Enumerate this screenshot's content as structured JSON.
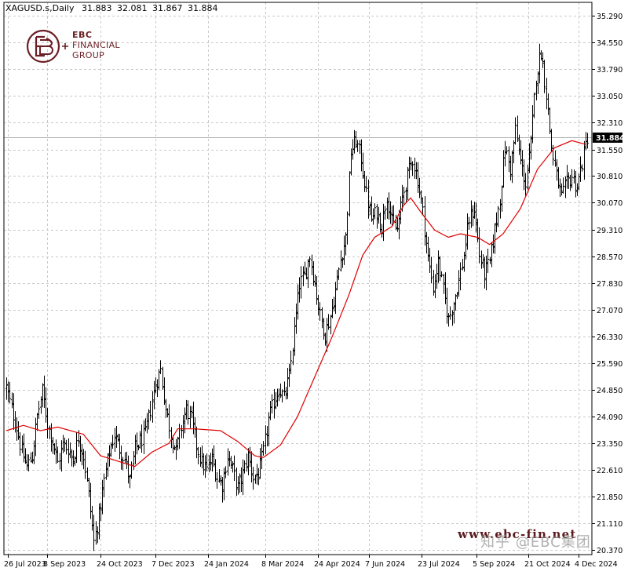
{
  "header": {
    "symbol": "XAGUSD.s,Daily",
    "open": "31.883",
    "high": "32.081",
    "low": "31.867",
    "close": "31.884"
  },
  "logo": {
    "line1": "EBC",
    "line2": "FINANCIAL",
    "line3": "GROUP"
  },
  "watermark": {
    "url": "www.ebc-fin.net",
    "zh": "知乎 @EBC集团"
  },
  "colors": {
    "price_bars": "#000000",
    "moving_average": "#e00000",
    "grid": "#c8c8c8",
    "logo": "#6b1f24",
    "current_price_label_bg": "#000000",
    "current_price_label_text": "#ffffff"
  },
  "chart_data": {
    "type": "ohlc",
    "grid": true,
    "y_ticks": [
      "35.290",
      "34.550",
      "33.790",
      "33.050",
      "32.310",
      "31.550",
      "30.810",
      "30.070",
      "29.310",
      "28.570",
      "27.830",
      "27.070",
      "26.330",
      "25.590",
      "24.850",
      "24.090",
      "23.350",
      "22.610",
      "21.850",
      "21.110",
      "20.370"
    ],
    "ylim": [
      20.37,
      35.29
    ],
    "x_ticks": [
      "26 Jul 2023",
      "8 Sep 2023",
      "24 Oct 2023",
      "7 Dec 2023",
      "24 Jan 2024",
      "8 Mar 2024",
      "24 Apr 2024",
      "7 Jun 2024",
      "23 Jul 2024",
      "5 Sep 2024",
      "21 Oct 2024",
      "4 Dec 2024"
    ],
    "current_price": 31.884,
    "close_anchors": [
      [
        0,
        24.9
      ],
      [
        3,
        24.3
      ],
      [
        6,
        23.8
      ],
      [
        9,
        23.1
      ],
      [
        12,
        22.7
      ],
      [
        15,
        23.0
      ],
      [
        18,
        24.1
      ],
      [
        21,
        24.8
      ],
      [
        24,
        23.9
      ],
      [
        27,
        23.4
      ],
      [
        30,
        22.8
      ],
      [
        33,
        23.3
      ],
      [
        36,
        23.2
      ],
      [
        39,
        22.9
      ],
      [
        42,
        23.5
      ],
      [
        45,
        23.0
      ],
      [
        48,
        21.9
      ],
      [
        51,
        20.6
      ],
      [
        54,
        21.3
      ],
      [
        57,
        22.3
      ],
      [
        60,
        23.1
      ],
      [
        63,
        23.6
      ],
      [
        66,
        23.2
      ],
      [
        69,
        22.9
      ],
      [
        72,
        22.3
      ],
      [
        75,
        23.2
      ],
      [
        78,
        23.4
      ],
      [
        81,
        23.6
      ],
      [
        84,
        24.3
      ],
      [
        87,
        25.0
      ],
      [
        90,
        25.4
      ],
      [
        93,
        24.3
      ],
      [
        96,
        23.6
      ],
      [
        99,
        23.1
      ],
      [
        102,
        23.8
      ],
      [
        105,
        24.3
      ],
      [
        108,
        24.0
      ],
      [
        111,
        23.3
      ],
      [
        114,
        22.8
      ],
      [
        117,
        22.6
      ],
      [
        120,
        22.9
      ],
      [
        123,
        22.4
      ],
      [
        126,
        22.2
      ],
      [
        129,
        23.0
      ],
      [
        132,
        22.6
      ],
      [
        135,
        22.1
      ],
      [
        138,
        22.5
      ],
      [
        141,
        23.0
      ],
      [
        144,
        22.4
      ],
      [
        147,
        22.5
      ],
      [
        150,
        23.1
      ],
      [
        153,
        24.0
      ],
      [
        156,
        24.5
      ],
      [
        159,
        24.9
      ],
      [
        162,
        24.6
      ],
      [
        165,
        25.2
      ],
      [
        168,
        26.5
      ],
      [
        171,
        27.8
      ],
      [
        174,
        28.0
      ],
      [
        177,
        28.6
      ],
      [
        180,
        27.8
      ],
      [
        183,
        26.9
      ],
      [
        186,
        26.4
      ],
      [
        189,
        26.9
      ],
      [
        192,
        27.6
      ],
      [
        195,
        28.5
      ],
      [
        198,
        29.1
      ],
      [
        201,
        31.5
      ],
      [
        204,
        31.8
      ],
      [
        207,
        31.3
      ],
      [
        210,
        30.3
      ],
      [
        213,
        29.6
      ],
      [
        216,
        29.8
      ],
      [
        219,
        29.4
      ],
      [
        222,
        30.3
      ],
      [
        225,
        29.5
      ],
      [
        228,
        29.3
      ],
      [
        231,
        30.2
      ],
      [
        234,
        30.8
      ],
      [
        237,
        31.3
      ],
      [
        240,
        30.7
      ],
      [
        243,
        29.8
      ],
      [
        246,
        28.5
      ],
      [
        249,
        27.7
      ],
      [
        252,
        28.4
      ],
      [
        255,
        27.6
      ],
      [
        258,
        26.8
      ],
      [
        261,
        27.3
      ],
      [
        264,
        27.9
      ],
      [
        267,
        28.6
      ],
      [
        270,
        29.6
      ],
      [
        273,
        29.9
      ],
      [
        276,
        28.6
      ],
      [
        279,
        28.1
      ],
      [
        282,
        28.4
      ],
      [
        285,
        29.3
      ],
      [
        288,
        30.2
      ],
      [
        291,
        31.6
      ],
      [
        294,
        31.0
      ],
      [
        297,
        32.1
      ],
      [
        300,
        31.2
      ],
      [
        303,
        30.6
      ],
      [
        306,
        31.7
      ],
      [
        309,
        33.6
      ],
      [
        312,
        34.3
      ],
      [
        315,
        33.1
      ],
      [
        318,
        31.6
      ],
      [
        321,
        30.8
      ],
      [
        324,
        30.2
      ],
      [
        327,
        30.6
      ],
      [
        330,
        30.8
      ],
      [
        333,
        30.5
      ],
      [
        336,
        31.2
      ],
      [
        339,
        31.9
      ]
    ],
    "series": [
      {
        "name": "",
        "type": "ohlc_bars"
      },
      {
        "name": "",
        "type": "moving_average",
        "values": [
          [
            0,
            23.7
          ],
          [
            10,
            23.85
          ],
          [
            20,
            23.7
          ],
          [
            30,
            23.8
          ],
          [
            45,
            23.6
          ],
          [
            55,
            23.0
          ],
          [
            65,
            22.85
          ],
          [
            75,
            22.7
          ],
          [
            85,
            23.1
          ],
          [
            95,
            23.35
          ],
          [
            100,
            23.75
          ],
          [
            110,
            23.75
          ],
          [
            125,
            23.7
          ],
          [
            135,
            23.4
          ],
          [
            145,
            23.0
          ],
          [
            150,
            22.95
          ],
          [
            160,
            23.3
          ],
          [
            170,
            24.1
          ],
          [
            180,
            25.2
          ],
          [
            190,
            26.3
          ],
          [
            200,
            27.5
          ],
          [
            208,
            28.6
          ],
          [
            215,
            29.1
          ],
          [
            225,
            29.4
          ],
          [
            232,
            30.0
          ],
          [
            236,
            30.2
          ],
          [
            242,
            29.8
          ],
          [
            250,
            29.3
          ],
          [
            258,
            29.1
          ],
          [
            265,
            29.2
          ],
          [
            275,
            29.1
          ],
          [
            282,
            28.9
          ],
          [
            290,
            29.2
          ],
          [
            300,
            29.9
          ],
          [
            310,
            31.0
          ],
          [
            320,
            31.6
          ],
          [
            330,
            31.8
          ],
          [
            338,
            31.7
          ]
        ]
      }
    ]
  }
}
